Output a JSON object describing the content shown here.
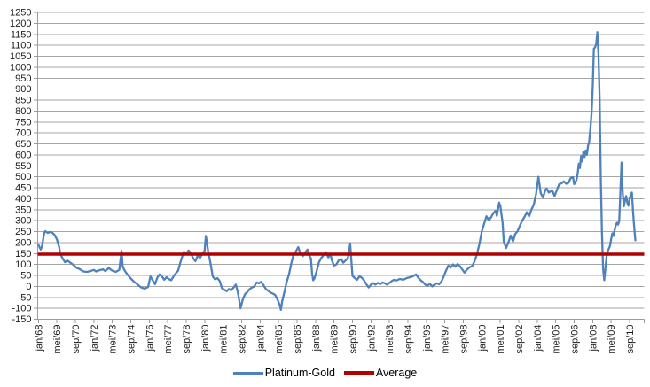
{
  "chart_data": {
    "type": "line",
    "title": "",
    "x_axis": {
      "unit": "months since jan/68",
      "months_between_ticks": 16,
      "tick_labels": [
        "jan/68",
        "mei/69",
        "sep/70",
        "jan/72",
        "mei/73",
        "sep/74",
        "jan/76",
        "mei/77",
        "sep/78",
        "jan/80",
        "mei/81",
        "sep/82",
        "jan/84",
        "mei/85",
        "sep/86",
        "jan/88",
        "mei/89",
        "sep/90",
        "jan/92",
        "mei/93",
        "sep/94",
        "jan/96",
        "mei/97",
        "sep/98",
        "jan/00",
        "mei/01",
        "sep/02",
        "jan/04",
        "mei/05",
        "sep/06",
        "jan/08",
        "mei/09",
        "sep/10"
      ]
    },
    "y_axis": {
      "min": -150,
      "max": 1250,
      "tick_step": 50,
      "tick_labels": [
        1250,
        1200,
        1150,
        1100,
        1050,
        1000,
        950,
        900,
        850,
        800,
        750,
        700,
        650,
        600,
        550,
        500,
        450,
        400,
        350,
        300,
        250,
        200,
        150,
        100,
        50,
        0,
        -50,
        -100,
        -150
      ]
    },
    "grid": "horizontal",
    "legend_position": "bottom",
    "series": [
      {
        "name": "Platinum-Gold",
        "color": "#4f81bd",
        "points": [
          [
            0,
            190
          ],
          [
            2,
            168
          ],
          [
            3,
            180
          ],
          [
            5,
            242
          ],
          [
            6,
            252
          ],
          [
            8,
            244
          ],
          [
            10,
            248
          ],
          [
            12,
            245
          ],
          [
            14,
            235
          ],
          [
            16,
            215
          ],
          [
            18,
            180
          ],
          [
            19,
            148
          ],
          [
            21,
            128
          ],
          [
            23,
            110
          ],
          [
            25,
            118
          ],
          [
            27,
            110
          ],
          [
            29,
            103
          ],
          [
            31,
            95
          ],
          [
            33,
            85
          ],
          [
            36,
            78
          ],
          [
            39,
            68
          ],
          [
            42,
            66
          ],
          [
            45,
            70
          ],
          [
            48,
            75
          ],
          [
            50,
            68
          ],
          [
            53,
            74
          ],
          [
            56,
            78
          ],
          [
            58,
            70
          ],
          [
            61,
            84
          ],
          [
            64,
            72
          ],
          [
            67,
            66
          ],
          [
            70,
            75
          ],
          [
            72,
            162
          ],
          [
            73,
            90
          ],
          [
            75,
            70
          ],
          [
            77,
            55
          ],
          [
            80,
            36
          ],
          [
            83,
            20
          ],
          [
            86,
            8
          ],
          [
            89,
            -5
          ],
          [
            92,
            -10
          ],
          [
            95,
            -3
          ],
          [
            97,
            45
          ],
          [
            99,
            28
          ],
          [
            101,
            10
          ],
          [
            103,
            40
          ],
          [
            105,
            55
          ],
          [
            107,
            45
          ],
          [
            109,
            30
          ],
          [
            111,
            42
          ],
          [
            113,
            33
          ],
          [
            115,
            28
          ],
          [
            117,
            45
          ],
          [
            119,
            60
          ],
          [
            121,
            72
          ],
          [
            123,
            110
          ],
          [
            124,
            128
          ],
          [
            126,
            158
          ],
          [
            128,
            148
          ],
          [
            130,
            164
          ],
          [
            132,
            152
          ],
          [
            134,
            128
          ],
          [
            136,
            115
          ],
          [
            138,
            140
          ],
          [
            140,
            130
          ],
          [
            142,
            150
          ],
          [
            144,
            162
          ],
          [
            145,
            230
          ],
          [
            146,
            200
          ],
          [
            147,
            160
          ],
          [
            149,
            108
          ],
          [
            151,
            45
          ],
          [
            153,
            32
          ],
          [
            155,
            38
          ],
          [
            157,
            25
          ],
          [
            159,
            -8
          ],
          [
            161,
            -15
          ],
          [
            163,
            -22
          ],
          [
            165,
            -12
          ],
          [
            167,
            -18
          ],
          [
            169,
            -5
          ],
          [
            171,
            8
          ],
          [
            173,
            -35
          ],
          [
            175,
            -100
          ],
          [
            176,
            -80
          ],
          [
            177,
            -60
          ],
          [
            179,
            -35
          ],
          [
            181,
            -25
          ],
          [
            183,
            -12
          ],
          [
            185,
            -5
          ],
          [
            187,
            0
          ],
          [
            189,
            18
          ],
          [
            191,
            14
          ],
          [
            193,
            21
          ],
          [
            195,
            5
          ],
          [
            197,
            -12
          ],
          [
            199,
            -20
          ],
          [
            201,
            -28
          ],
          [
            203,
            -33
          ],
          [
            205,
            -39
          ],
          [
            207,
            -60
          ],
          [
            209,
            -85
          ],
          [
            210,
            -107
          ],
          [
            211,
            -70
          ],
          [
            213,
            -26
          ],
          [
            215,
            20
          ],
          [
            217,
            55
          ],
          [
            219,
            105
          ],
          [
            221,
            146
          ],
          [
            223,
            160
          ],
          [
            225,
            179
          ],
          [
            227,
            150
          ],
          [
            229,
            138
          ],
          [
            231,
            155
          ],
          [
            233,
            168
          ],
          [
            234,
            145
          ],
          [
            236,
            128
          ],
          [
            237,
            60
          ],
          [
            238,
            28
          ],
          [
            239,
            35
          ],
          [
            241,
            70
          ],
          [
            243,
            110
          ],
          [
            245,
            130
          ],
          [
            247,
            142
          ],
          [
            249,
            156
          ],
          [
            251,
            132
          ],
          [
            253,
            148
          ],
          [
            254,
            120
          ],
          [
            256,
            95
          ],
          [
            258,
            100
          ],
          [
            260,
            118
          ],
          [
            262,
            125
          ],
          [
            264,
            108
          ],
          [
            266,
            118
          ],
          [
            268,
            130
          ],
          [
            269,
            155
          ],
          [
            270,
            196
          ],
          [
            271,
            120
          ],
          [
            272,
            48
          ],
          [
            274,
            38
          ],
          [
            276,
            30
          ],
          [
            278,
            45
          ],
          [
            280,
            40
          ],
          [
            282,
            28
          ],
          [
            284,
            10
          ],
          [
            286,
            -5
          ],
          [
            288,
            8
          ],
          [
            290,
            15
          ],
          [
            292,
            8
          ],
          [
            294,
            16
          ],
          [
            296,
            10
          ],
          [
            298,
            18
          ],
          [
            300,
            14
          ],
          [
            302,
            8
          ],
          [
            304,
            16
          ],
          [
            306,
            24
          ],
          [
            308,
            30
          ],
          [
            310,
            27
          ],
          [
            313,
            34
          ],
          [
            316,
            30
          ],
          [
            319,
            38
          ],
          [
            322,
            42
          ],
          [
            325,
            48
          ],
          [
            327,
            55
          ],
          [
            329,
            40
          ],
          [
            331,
            28
          ],
          [
            333,
            20
          ],
          [
            335,
            8
          ],
          [
            337,
            3
          ],
          [
            339,
            12
          ],
          [
            341,
            0
          ],
          [
            343,
            8
          ],
          [
            345,
            14
          ],
          [
            347,
            10
          ],
          [
            349,
            22
          ],
          [
            351,
            45
          ],
          [
            353,
            72
          ],
          [
            355,
            95
          ],
          [
            357,
            86
          ],
          [
            359,
            100
          ],
          [
            361,
            90
          ],
          [
            363,
            102
          ],
          [
            365,
            92
          ],
          [
            367,
            78
          ],
          [
            369,
            63
          ],
          [
            371,
            76
          ],
          [
            373,
            85
          ],
          [
            376,
            95
          ],
          [
            378,
            118
          ],
          [
            380,
            150
          ],
          [
            382,
            195
          ],
          [
            384,
            250
          ],
          [
            386,
            285
          ],
          [
            388,
            320
          ],
          [
            390,
            302
          ],
          [
            392,
            315
          ],
          [
            394,
            335
          ],
          [
            396,
            345
          ],
          [
            397,
            322
          ],
          [
            399,
            382
          ],
          [
            400,
            368
          ],
          [
            401,
            330
          ],
          [
            402,
            290
          ],
          [
            403,
            205
          ],
          [
            405,
            175
          ],
          [
            407,
            200
          ],
          [
            409,
            232
          ],
          [
            411,
            205
          ],
          [
            413,
            240
          ],
          [
            415,
            252
          ],
          [
            417,
            277
          ],
          [
            419,
            300
          ],
          [
            421,
            317
          ],
          [
            423,
            338
          ],
          [
            425,
            320
          ],
          [
            427,
            350
          ],
          [
            429,
            372
          ],
          [
            431,
            420
          ],
          [
            433,
            500
          ],
          [
            435,
            425
          ],
          [
            437,
            405
          ],
          [
            439,
            440
          ],
          [
            440,
            447
          ],
          [
            442,
            428
          ],
          [
            445,
            438
          ],
          [
            447,
            412
          ],
          [
            449,
            440
          ],
          [
            451,
            466
          ],
          [
            453,
            470
          ],
          [
            455,
            479
          ],
          [
            457,
            468
          ],
          [
            459,
            472
          ],
          [
            461,
            495
          ],
          [
            463,
            499
          ],
          [
            464,
            466
          ],
          [
            466,
            485
          ],
          [
            467,
            513
          ],
          [
            468,
            560
          ],
          [
            469,
            540
          ],
          [
            470,
            595
          ],
          [
            471,
            570
          ],
          [
            472,
            615
          ],
          [
            473,
            590
          ],
          [
            474,
            620
          ],
          [
            475,
            600
          ],
          [
            476,
            640
          ],
          [
            477,
            660
          ],
          [
            478,
            720
          ],
          [
            479,
            790
          ],
          [
            480,
            905
          ],
          [
            481,
            1085
          ],
          [
            482,
            1090
          ],
          [
            483,
            1105
          ],
          [
            484,
            1160
          ],
          [
            485,
            1060
          ],
          [
            486,
            860
          ],
          [
            487,
            500
          ],
          [
            488,
            250
          ],
          [
            489,
            80
          ],
          [
            490,
            28
          ],
          [
            491,
            80
          ],
          [
            492,
            136
          ],
          [
            493,
            160
          ],
          [
            494,
            172
          ],
          [
            495,
            185
          ],
          [
            496,
            216
          ],
          [
            497,
            242
          ],
          [
            498,
            230
          ],
          [
            499,
            257
          ],
          [
            500,
            278
          ],
          [
            501,
            290
          ],
          [
            502,
            282
          ],
          [
            503,
            298
          ],
          [
            504,
            430
          ],
          [
            505,
            565
          ],
          [
            506,
            430
          ],
          [
            507,
            365
          ],
          [
            508,
            392
          ],
          [
            509,
            412
          ],
          [
            510,
            382
          ],
          [
            511,
            368
          ],
          [
            512,
            400
          ],
          [
            513,
            418
          ],
          [
            514,
            428
          ],
          [
            515,
            340
          ],
          [
            516,
            270
          ],
          [
            517,
            210
          ]
        ]
      },
      {
        "name": "Average",
        "color": "#b00000",
        "constant_value": 147
      }
    ]
  },
  "colors": {
    "gridline": "#a6a6a6",
    "axis": "#9b9b9b",
    "tick": "#9b9b9b",
    "label_text": "#1a1a1a",
    "background": "#ffffff"
  }
}
